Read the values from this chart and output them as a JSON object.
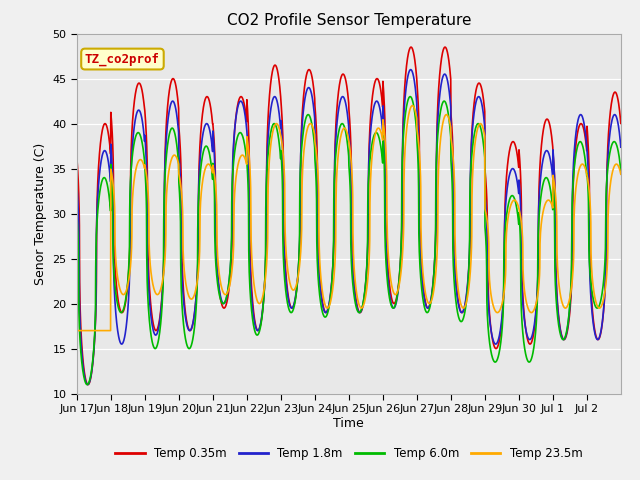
{
  "title": "CO2 Profile Sensor Temperature",
  "ylabel": "Senor Temperature (C)",
  "xlabel": "Time",
  "annotation_text": "TZ_co2prof",
  "annotation_bg": "#ffffcc",
  "annotation_border": "#ccaa00",
  "annotation_text_color": "#cc0000",
  "ylim": [
    10,
    50
  ],
  "yticks": [
    10,
    15,
    20,
    25,
    30,
    35,
    40,
    45,
    50
  ],
  "fig_bg": "#f0f0f0",
  "plot_bg": "#e8e8e8",
  "colors": {
    "0.35m": "#dd0000",
    "1.8m": "#2222cc",
    "6.0m": "#00bb00",
    "23.5m": "#ffaa00"
  },
  "legend": [
    {
      "label": "Temp 0.35m",
      "color": "#dd0000"
    },
    {
      "label": "Temp 1.8m",
      "color": "#2222cc"
    },
    {
      "label": "Temp 6.0m",
      "color": "#00bb00"
    },
    {
      "label": "Temp 23.5m",
      "color": "#ffaa00"
    }
  ],
  "n_days": 16,
  "xtick_labels": [
    "Jun 17",
    "Jun 18",
    "Jun 19",
    "Jun 20",
    "Jun 21",
    "Jun 22",
    "Jun 23",
    "Jun 24",
    "Jun 25",
    "Jun 26",
    "Jun 27",
    "Jun 28",
    "Jun 29",
    "Jun 30",
    "Jul 1",
    "Jul 2"
  ],
  "title_fontsize": 11,
  "axis_fontsize": 9,
  "tick_fontsize": 8,
  "peaks_035": [
    40,
    44.5,
    45,
    43,
    43,
    46.5,
    46,
    45.5,
    45,
    48.5,
    48.5,
    44.5,
    38,
    40.5,
    40,
    43.5
  ],
  "peaks_18": [
    37,
    41.5,
    42.5,
    40,
    42.5,
    43,
    44,
    43,
    42.5,
    46,
    45.5,
    43,
    35,
    37,
    41,
    41
  ],
  "peaks_60": [
    34,
    39,
    39.5,
    37.5,
    39,
    40,
    41,
    40,
    39,
    43,
    42.5,
    40,
    32,
    34,
    38,
    38
  ],
  "peaks_235": [
    17,
    36,
    36.5,
    35.5,
    36.5,
    40,
    40,
    39.5,
    39.5,
    42,
    41,
    40,
    31.5,
    31.5,
    35.5,
    35.5
  ],
  "mins_035": [
    11,
    19,
    17,
    17,
    19.5,
    17,
    19.5,
    19,
    19,
    20,
    19.5,
    19,
    15,
    15.5,
    16,
    16
  ],
  "mins_18": [
    11,
    15.5,
    16.5,
    17,
    20,
    17,
    19.5,
    19,
    19,
    19.5,
    19.5,
    19,
    15.5,
    16,
    16,
    16
  ],
  "mins_60": [
    11,
    19,
    15,
    15,
    20,
    16.5,
    19,
    18.5,
    19,
    19.5,
    19,
    18,
    13.5,
    13.5,
    16,
    19.5
  ],
  "mins_235": [
    17,
    21,
    21,
    20.5,
    21,
    20,
    21.5,
    19.5,
    19.5,
    21,
    20,
    19.5,
    19,
    19,
    19.5,
    19.5
  ],
  "phase_035": 0.0,
  "phase_18": 0.01,
  "phase_60": 0.025,
  "phase_235": -0.04
}
